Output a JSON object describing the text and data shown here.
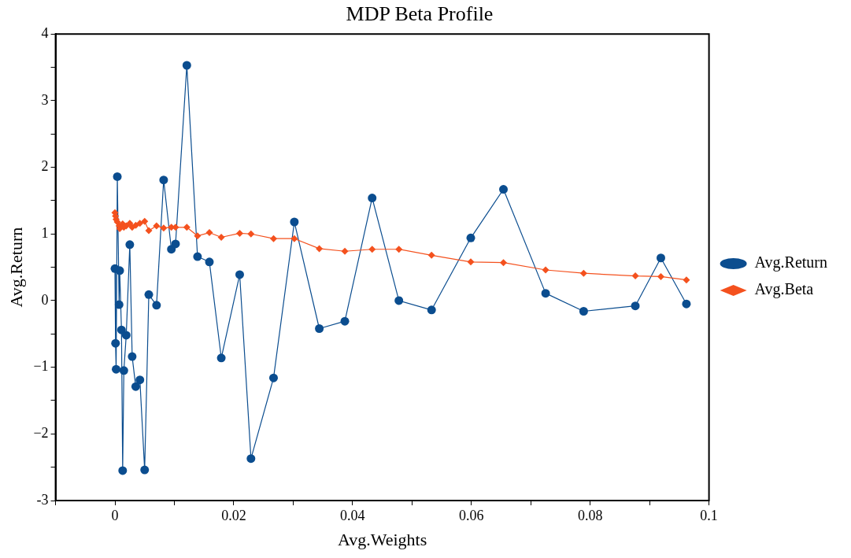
{
  "chart_data": {
    "type": "line",
    "title": "MDP Beta Profile",
    "xlabel": "Avg.Weights",
    "ylabel": "Avg.Return",
    "xlim": [
      -0.01,
      0.1
    ],
    "xticks": [
      {
        "value": -0.01,
        "label": null
      },
      0,
      {
        "value": 0.01,
        "label": null
      },
      {
        "value": 0.02,
        "label": "0.02"
      },
      {
        "value": 0.03,
        "label": null
      },
      {
        "value": 0.04,
        "label": "0.04"
      },
      {
        "value": 0.05,
        "label": null
      },
      {
        "value": 0.06,
        "label": "0.06"
      },
      {
        "value": 0.07,
        "label": null
      },
      {
        "value": 0.08,
        "label": "0.08"
      },
      {
        "value": 0.09,
        "label": null
      },
      {
        "value": 0.1,
        "label": "0.1"
      }
    ],
    "ylim": [
      -3,
      4
    ],
    "yticks": [
      -3,
      {
        "value": -2.5,
        "label": null
      },
      {
        "value": -2,
        "label": "−2"
      },
      {
        "value": -1.5,
        "label": null
      },
      {
        "value": -1,
        "label": "−1"
      },
      {
        "value": -0.5,
        "label": null
      },
      0,
      {
        "value": 0.5,
        "label": null
      },
      1,
      {
        "value": 1.5,
        "label": null
      },
      2,
      {
        "value": 2.5,
        "label": null
      },
      3,
      {
        "value": 3.5,
        "label": null
      },
      4
    ],
    "grid": false,
    "legend": "right",
    "line_style": "solid",
    "x": [
      0,
      0.0001,
      0.0002,
      0.0004,
      0.0007,
      0.0008,
      0.0011,
      0.0013,
      0.0015,
      0.0019,
      0.0025,
      0.0029,
      0.0035,
      0.0042,
      0.005,
      0.0057,
      0.007,
      0.0082,
      0.0095,
      0.0102,
      0.0121,
      0.0139,
      0.0159,
      0.0179,
      0.021,
      0.0229,
      0.0267,
      0.0302,
      0.0344,
      0.0387,
      0.0433,
      0.0478,
      0.0533,
      0.0599,
      0.0654,
      0.0725,
      0.0789,
      0.0876,
      0.0919,
      0.0962
    ],
    "series": [
      {
        "name": "Avg.Return",
        "color": "#0b4d8f",
        "marker": "circle",
        "values": [
          0.48,
          -0.64,
          -1.03,
          1.86,
          -0.06,
          0.45,
          -0.44,
          -2.55,
          -1.05,
          -0.52,
          0.84,
          -0.84,
          -1.29,
          -1.19,
          -2.54,
          0.09,
          -0.07,
          1.81,
          0.77,
          0.85,
          3.53,
          0.66,
          0.58,
          -0.86,
          0.39,
          -2.37,
          -1.16,
          1.18,
          -0.42,
          -0.31,
          1.54,
          0,
          -0.14,
          0.94,
          1.67,
          0.11,
          -0.16,
          -0.08,
          0.64,
          -0.05
        ]
      },
      {
        "name": "Avg.Beta",
        "color": "#f4511e",
        "marker": "diamond",
        "values": [
          1.32,
          1.27,
          1.22,
          1.18,
          1.12,
          1.08,
          1.13,
          1.15,
          1.1,
          1.12,
          1.16,
          1.1,
          1.13,
          1.16,
          1.19,
          1.05,
          1.12,
          1.09,
          1.1,
          1.1,
          1.1,
          0.97,
          1.02,
          0.95,
          1.01,
          1.0,
          0.93,
          0.93,
          0.78,
          0.74,
          0.77,
          0.77,
          0.68,
          0.58,
          0.57,
          0.46,
          0.41,
          0.37,
          0.36,
          0.31
        ]
      }
    ]
  }
}
